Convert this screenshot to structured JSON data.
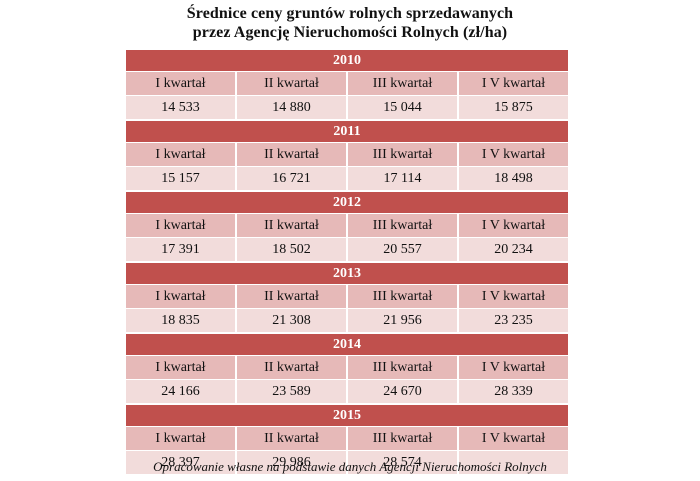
{
  "title": {
    "line1": "Średnice ceny gruntów rolnych sprzedawanych",
    "line2": "przez Agencję Nieruchomości Rolnych (zł/ha)"
  },
  "quarter_labels": [
    "I kwartał",
    "II kwartał",
    "III kwartał",
    "I V kwartał"
  ],
  "years": [
    {
      "year": "2010",
      "values": [
        "14 533",
        "14 880",
        "15 044",
        "15 875"
      ]
    },
    {
      "year": "2011",
      "values": [
        "15 157",
        "16 721",
        "17 114",
        "18 498"
      ]
    },
    {
      "year": "2012",
      "values": [
        "17 391",
        "18 502",
        "20 557",
        "20 234"
      ]
    },
    {
      "year": "2013",
      "values": [
        "18 835",
        "21 308",
        "21 956",
        "23 235"
      ]
    },
    {
      "year": "2014",
      "values": [
        "24 166",
        "23 589",
        "24 670",
        "28 339"
      ]
    },
    {
      "year": "2015",
      "values": [
        "28 397",
        "29 986",
        "28 574",
        ""
      ]
    }
  ],
  "footer": "Opracowanie własne na podstawie danych Agencji Nieruchomości Rolnych",
  "colors": {
    "year_band": "#c0504d",
    "header_row": "#e6b9b8",
    "value_row": "#f2dcdb"
  }
}
